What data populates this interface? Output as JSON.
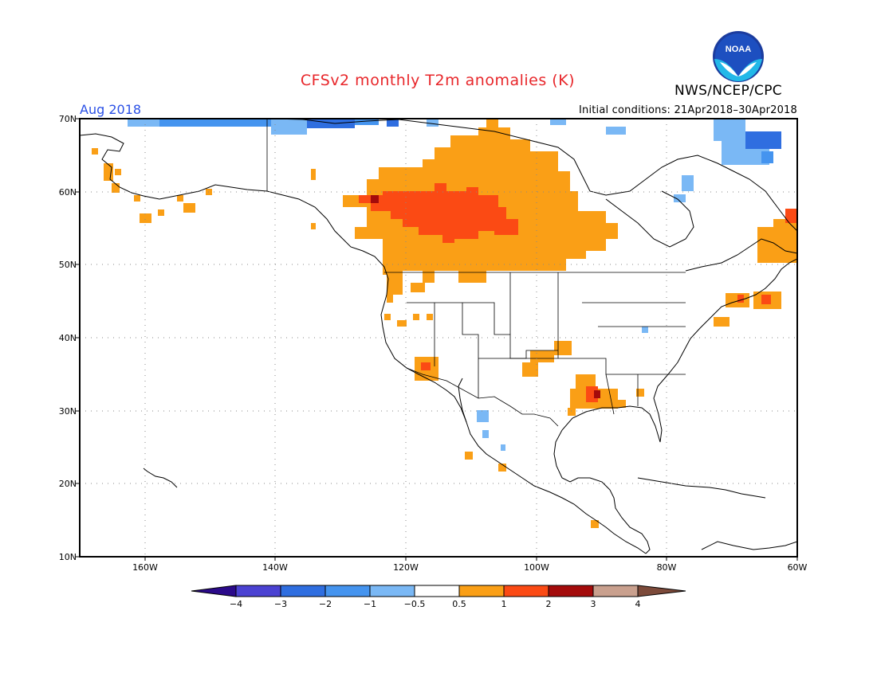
{
  "title": "CFSv2 monthly T2m anomalies (K)",
  "agency": "NWS/NCEP/CPC",
  "logo_text": "NOAA",
  "valid_month": "Aug 2018",
  "initial_conditions": "Initial conditions: 21Apr2018–30Apr2018",
  "map": {
    "lat_labels": [
      "70N",
      "60N",
      "50N",
      "40N",
      "30N",
      "20N",
      "10N"
    ],
    "lon_labels": [
      "160W",
      "140W",
      "120W",
      "100W",
      "80W",
      "60W"
    ],
    "lat_range": [
      10,
      70
    ],
    "lon_range": [
      -170,
      -60
    ]
  },
  "colorbar": {
    "labels": [
      "−4",
      "−3",
      "−2",
      "−1",
      "−0.5",
      "0.5",
      "1",
      "2",
      "3",
      "4"
    ],
    "colors": [
      "#2b0a8a",
      "#4b42d2",
      "#2f6ee0",
      "#4594ef",
      "#7ab8f5",
      "#ffffff",
      "#fa9f16",
      "#fb4a14",
      "#a40b0b",
      "#c9a08e",
      "#7c4a3a"
    ]
  },
  "legend_colors": {
    "warm_1": "#fa9f16",
    "warm_2": "#fb4a14",
    "warm_3": "#a40b0b",
    "cool_1": "#7ab8f5",
    "cool_2": "#4594ef",
    "cool_3": "#2f6ee0"
  }
}
